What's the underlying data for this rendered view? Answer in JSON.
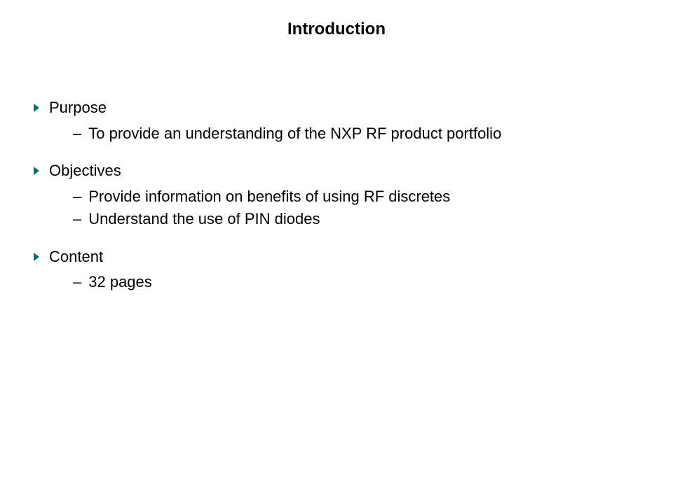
{
  "slide": {
    "title": "Introduction",
    "bullet_color": "#0d6b6b",
    "title_fontsize": 24,
    "body_fontsize": 22,
    "sections": [
      {
        "heading": "Purpose",
        "items": [
          "To provide an understanding of the NXP RF product portfolio"
        ]
      },
      {
        "heading": "Objectives",
        "items": [
          "Provide information on benefits of using RF discretes",
          "Understand the use of PIN diodes"
        ]
      },
      {
        "heading": "Content",
        "items": [
          "32 pages"
        ]
      }
    ]
  }
}
